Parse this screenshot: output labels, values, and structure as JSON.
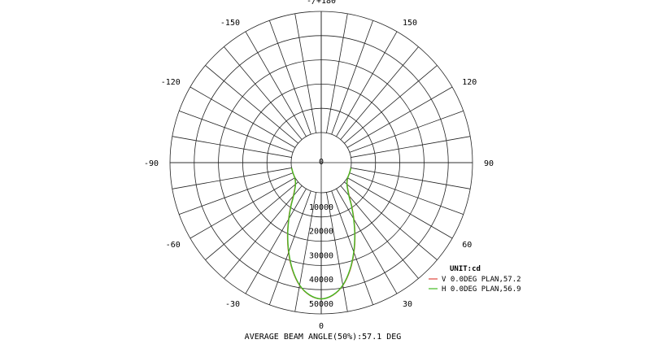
{
  "chart_data": {
    "type": "polar-line",
    "title": "",
    "unit_label": "UNIT:cd",
    "footer": "AVERAGE BEAM ANGLE(50%):57.1 DEG",
    "angle_labels": [
      {
        "angle": 180,
        "text": "-/+180"
      },
      {
        "angle": 150,
        "text": "150"
      },
      {
        "angle": -150,
        "text": "-150"
      },
      {
        "angle": 120,
        "text": "120"
      },
      {
        "angle": -120,
        "text": "-120"
      },
      {
        "angle": 90,
        "text": "90"
      },
      {
        "angle": -90,
        "text": "-90"
      },
      {
        "angle": 60,
        "text": "60"
      },
      {
        "angle": -60,
        "text": "-60"
      },
      {
        "angle": 30,
        "text": "30"
      },
      {
        "angle": -30,
        "text": "-30"
      },
      {
        "angle": 0,
        "text": "0"
      }
    ],
    "radial_ticks": [
      0,
      10000,
      20000,
      30000,
      40000,
      50000
    ],
    "radial_labels": [
      "0",
      "10000",
      "20000",
      "30000",
      "40000",
      "50000"
    ],
    "radial_max": 50000,
    "angle_step_grid": 10,
    "grid": true,
    "legend_position": "bottom-right",
    "series": [
      {
        "name": "V 0.0DEG PLAN,57.2",
        "color": "#e0463c",
        "angles": [
          -80,
          -70,
          -60,
          -50,
          -40,
          -35,
          -30,
          -25,
          -20,
          -15,
          -10,
          -5,
          0,
          5,
          10,
          15,
          20,
          25,
          30,
          35,
          40,
          50,
          60,
          70,
          80
        ],
        "values": [
          0,
          0,
          200,
          1500,
          5500,
          9500,
          14500,
          20500,
          27000,
          33500,
          39000,
          42500,
          43800,
          42500,
          39000,
          33500,
          27000,
          20500,
          14500,
          9500,
          5500,
          1500,
          200,
          0,
          0
        ]
      },
      {
        "name": "H 0.0DEG PLAN,56.9",
        "color": "#44bb22",
        "angles": [
          -80,
          -70,
          -60,
          -50,
          -40,
          -35,
          -30,
          -25,
          -20,
          -15,
          -10,
          -5,
          0,
          5,
          10,
          15,
          20,
          25,
          30,
          35,
          40,
          50,
          60,
          70,
          80
        ],
        "values": [
          0,
          0,
          200,
          1400,
          5300,
          9300,
          14300,
          20300,
          26800,
          33300,
          38900,
          42400,
          43800,
          42400,
          38900,
          33300,
          26800,
          20300,
          14300,
          9300,
          5300,
          1400,
          200,
          0,
          0
        ]
      }
    ]
  }
}
